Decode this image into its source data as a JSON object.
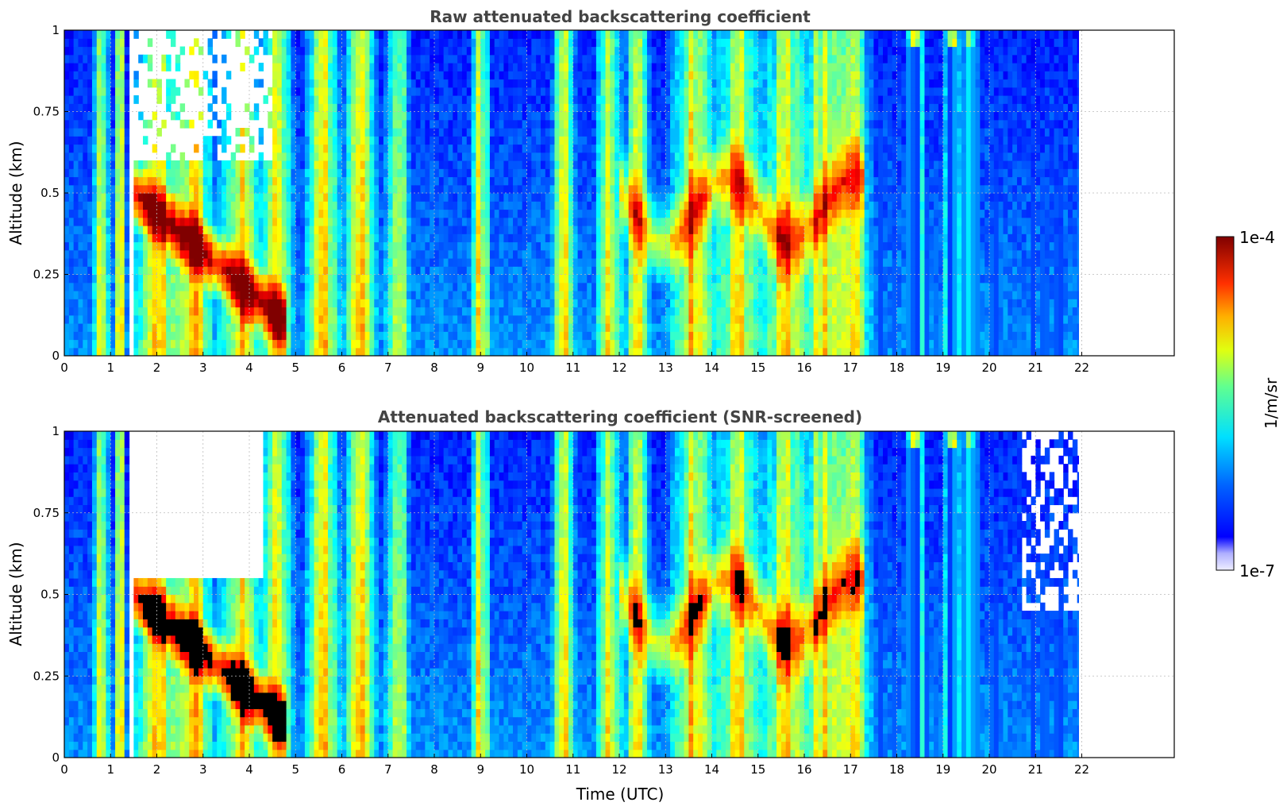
{
  "chart_data": [
    {
      "type": "heatmap",
      "title": "Raw attenuated backscattering coefficient",
      "xlabel": "",
      "ylabel": "Altitude (km)",
      "xlim": [
        0,
        24
      ],
      "ylim": [
        0,
        1
      ],
      "x_ticks": [
        "0",
        "1",
        "2",
        "3",
        "4",
        "5",
        "6",
        "7",
        "8",
        "9",
        "10",
        "11",
        "12",
        "13",
        "14",
        "15",
        "16",
        "17",
        "18",
        "19",
        "20",
        "21",
        "22"
      ],
      "y_ticks": [
        "0",
        "0.25",
        "0.5",
        "0.75",
        "1"
      ],
      "grid": true,
      "data_extent_hours": [
        0,
        22
      ],
      "snr_screened": false
    },
    {
      "type": "heatmap",
      "title": "Attenuated backscattering coefficient (SNR-screened)",
      "xlabel": "Time (UTC)",
      "ylabel": "Altitude (km)",
      "xlim": [
        0,
        24
      ],
      "ylim": [
        0,
        1
      ],
      "x_ticks": [
        "0",
        "1",
        "2",
        "3",
        "4",
        "5",
        "6",
        "7",
        "8",
        "9",
        "10",
        "11",
        "12",
        "13",
        "14",
        "15",
        "16",
        "17",
        "18",
        "19",
        "20",
        "21",
        "22"
      ],
      "y_ticks": [
        "0",
        "0.25",
        "0.5",
        "0.75",
        "1"
      ],
      "grid": true,
      "data_extent_hours": [
        0,
        22
      ],
      "snr_screened": true
    }
  ],
  "colorbar": {
    "label": "1/m/sr",
    "max_label": "1e-4",
    "min_label": "1e-7",
    "scale": "log",
    "colormap": "jet",
    "low_end_color": "#e8e8ff"
  },
  "colors": {
    "title": "#444444",
    "grid": "#bbbbbb",
    "axes": "#000000"
  }
}
